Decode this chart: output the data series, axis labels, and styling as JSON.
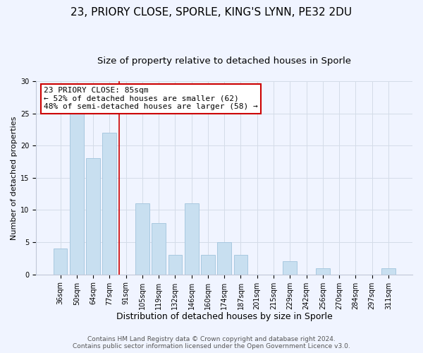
{
  "title": "23, PRIORY CLOSE, SPORLE, KING'S LYNN, PE32 2DU",
  "subtitle": "Size of property relative to detached houses in Sporle",
  "xlabel": "Distribution of detached houses by size in Sporle",
  "ylabel": "Number of detached properties",
  "categories": [
    "36sqm",
    "50sqm",
    "64sqm",
    "77sqm",
    "91sqm",
    "105sqm",
    "119sqm",
    "132sqm",
    "146sqm",
    "160sqm",
    "174sqm",
    "187sqm",
    "201sqm",
    "215sqm",
    "229sqm",
    "242sqm",
    "256sqm",
    "270sqm",
    "284sqm",
    "297sqm",
    "311sqm"
  ],
  "values": [
    4,
    25,
    18,
    22,
    0,
    11,
    8,
    3,
    11,
    3,
    5,
    3,
    0,
    0,
    2,
    0,
    1,
    0,
    0,
    0,
    1
  ],
  "bar_color": "#c8dff0",
  "bar_edge_color": "#a8c8e0",
  "background_color": "#f0f4ff",
  "grid_color": "#d4dce8",
  "ylim": [
    0,
    30
  ],
  "yticks": [
    0,
    5,
    10,
    15,
    20,
    25,
    30
  ],
  "annotation_title": "23 PRIORY CLOSE: 85sqm",
  "annotation_line1": "← 52% of detached houses are smaller (62)",
  "annotation_line2": "48% of semi-detached houses are larger (58) →",
  "annotation_box_color": "#ffffff",
  "annotation_border_color": "#cc0000",
  "marker_line_color": "#cc0000",
  "footer1": "Contains HM Land Registry data © Crown copyright and database right 2024.",
  "footer2": "Contains public sector information licensed under the Open Government Licence v3.0.",
  "title_fontsize": 11,
  "subtitle_fontsize": 9.5,
  "xlabel_fontsize": 9,
  "ylabel_fontsize": 8,
  "tick_fontsize": 7,
  "annotation_fontsize": 8,
  "footer_fontsize": 6.5
}
